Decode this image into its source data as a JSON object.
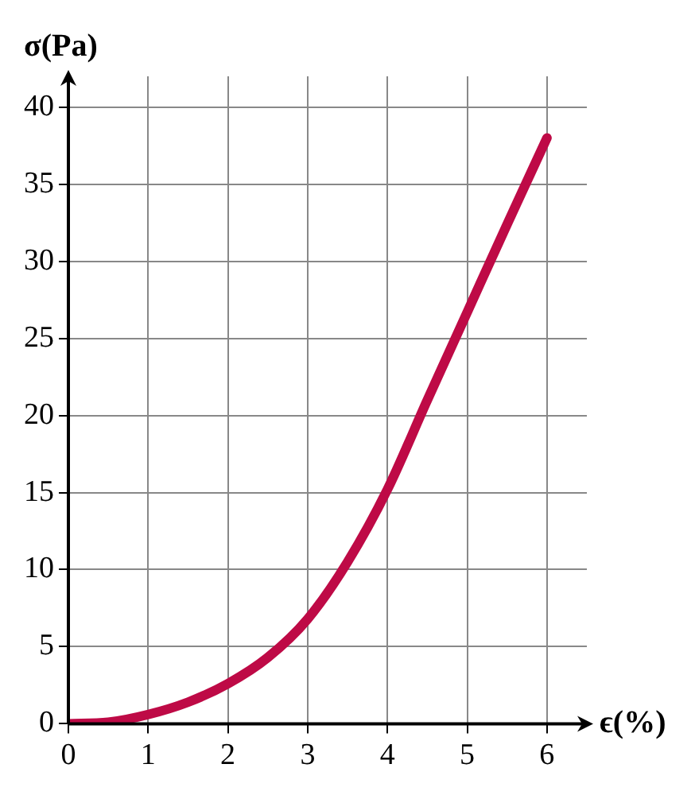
{
  "chart_data": {
    "type": "line",
    "xlabel": "ϵ(%)",
    "ylabel": "σ(Pa)",
    "x": [
      0,
      0.5,
      1,
      1.5,
      2,
      2.5,
      3,
      3.5,
      4,
      4.5,
      5,
      5.5,
      6
    ],
    "series": [
      {
        "color": "#be0a46",
        "values": [
          0,
          0.1,
          0.6,
          1.4,
          2.6,
          4.3,
          6.8,
          10.5,
          15.2,
          21,
          26.7,
          32.4,
          38
        ]
      }
    ],
    "xlim": [
      0,
      6.5
    ],
    "ylim": [
      0,
      42
    ],
    "xticks": [
      0,
      1,
      2,
      3,
      4,
      5,
      6
    ],
    "yticks": [
      0,
      5,
      10,
      15,
      20,
      25,
      30,
      35,
      40
    ],
    "grid": true,
    "legend": false,
    "marker": "none",
    "line_style": "solid"
  }
}
